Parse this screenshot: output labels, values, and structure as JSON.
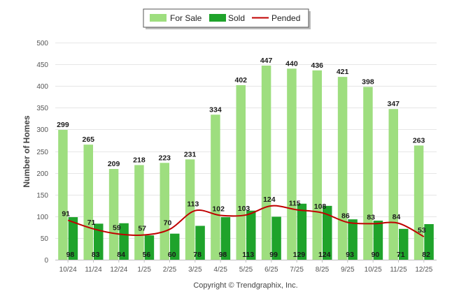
{
  "chart_data": {
    "type": "bar",
    "title": "",
    "xlabel": "",
    "ylabel": "Number of Homes",
    "ylim": [
      0,
      500
    ],
    "yticks": [
      0,
      50,
      100,
      150,
      200,
      250,
      300,
      350,
      400,
      450,
      500
    ],
    "grid": true,
    "legend_position": "top-center",
    "categories": [
      "10/24",
      "11/24",
      "12/24",
      "1/25",
      "2/25",
      "3/25",
      "4/25",
      "5/25",
      "6/25",
      "7/25",
      "8/25",
      "9/25",
      "10/25",
      "11/25",
      "12/25"
    ],
    "series": [
      {
        "name": "For Sale",
        "type": "bar",
        "color": "#9ede7f",
        "values": [
          299,
          265,
          209,
          218,
          223,
          231,
          334,
          402,
          447,
          440,
          436,
          421,
          398,
          347,
          263
        ]
      },
      {
        "name": "Sold",
        "type": "bar",
        "color": "#1fa32b",
        "values": [
          98,
          83,
          84,
          56,
          60,
          78,
          98,
          113,
          99,
          129,
          124,
          93,
          90,
          71,
          82
        ]
      },
      {
        "name": "Pended",
        "type": "line",
        "color": "#c00000",
        "values": [
          91,
          71,
          59,
          57,
          70,
          113,
          102,
          103,
          124,
          115,
          108,
          86,
          83,
          84,
          53
        ]
      }
    ]
  },
  "footer": {
    "copyright": "Copyright © Trendgraphix, Inc."
  }
}
